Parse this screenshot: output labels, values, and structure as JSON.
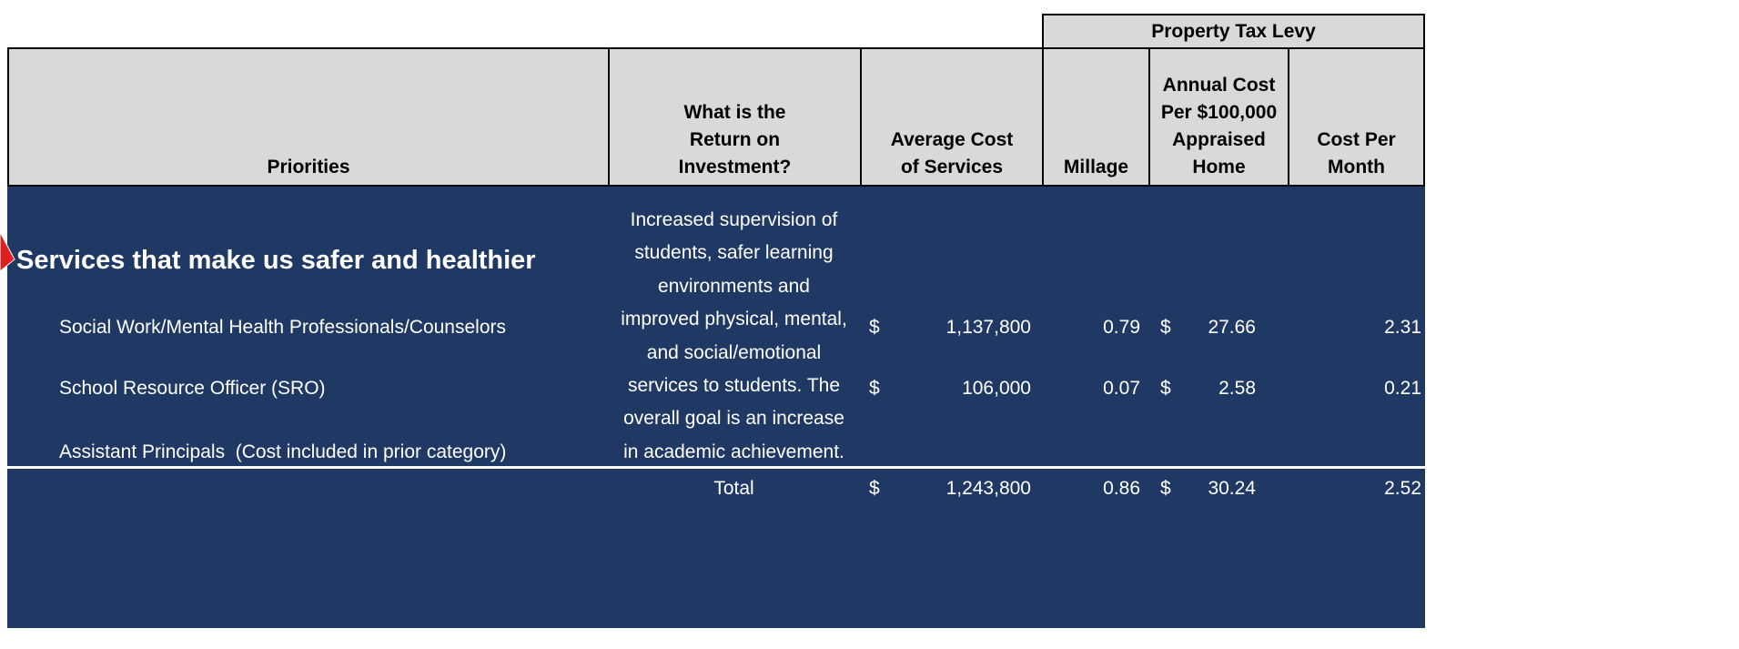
{
  "header": {
    "group": "Property Tax Levy",
    "columns": [
      "Priorities",
      "What is the Return on Investment?",
      "Average Cost of Services",
      "Millage",
      "Annual Cost Per $100,000 Appraised Home",
      "Cost Per Month"
    ]
  },
  "section": {
    "title": "Services that make us safer and healthier",
    "roi_lines": [
      "Increased supervision of",
      "students, safer learning",
      "environments and",
      "improved physical, mental,",
      "and social/emotional",
      "services to students. The",
      "overall goal is an increase",
      "in academic achievement."
    ],
    "rows": [
      {
        "name": "Social Work/Mental Health Professionals/Counselors",
        "cost_symbol": "$",
        "cost": "1,137,800",
        "millage": "0.79",
        "annual_symbol": "$",
        "annual": "27.66",
        "monthly": "2.31"
      },
      {
        "name": "School Resource Officer (SRO)",
        "cost_symbol": "$",
        "cost": "106,000",
        "millage": "0.07",
        "annual_symbol": "$",
        "annual": "2.58",
        "monthly": "0.21"
      },
      {
        "name": "Assistant Principals  (Cost included in prior category)"
      }
    ]
  },
  "total": {
    "label": "Total",
    "cost_symbol": "$",
    "cost": "1,243,800",
    "millage": "0.86",
    "annual_symbol": "$",
    "annual": "30.24",
    "monthly": "2.52"
  }
}
